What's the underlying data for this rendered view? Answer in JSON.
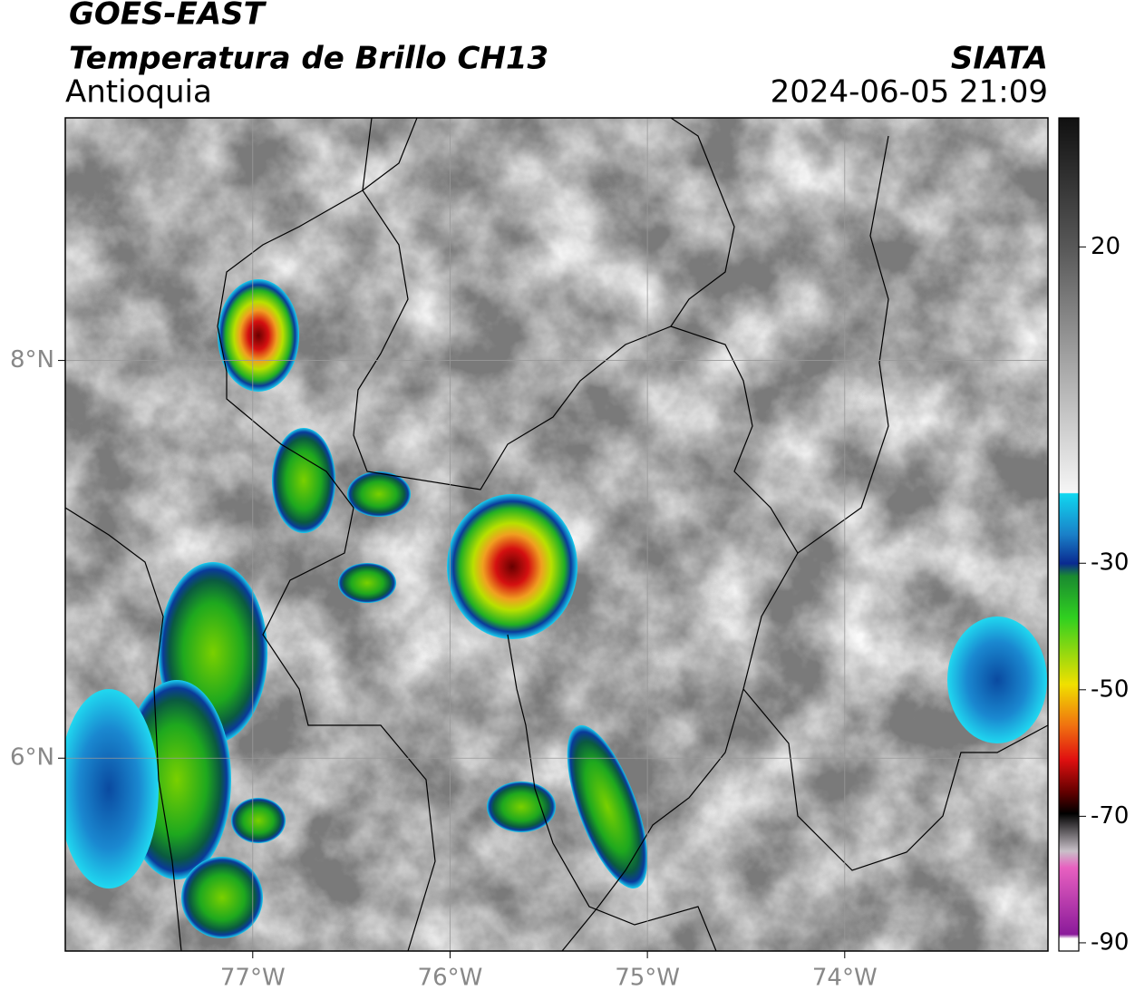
{
  "header": {
    "title": "GOES-EAST",
    "subtitle": "Temperatura de Brillo CH13",
    "region": "Antioquia",
    "source": "SIATA",
    "datetime": "2024-06-05 21:09"
  },
  "map": {
    "xlim": [
      -77.95,
      -72.97
    ],
    "ylim": [
      5.03,
      9.22
    ],
    "xticks": [
      {
        "value": -77,
        "label": "77°W"
      },
      {
        "value": -76,
        "label": "76°W"
      },
      {
        "value": -75,
        "label": "75°W"
      },
      {
        "value": -74,
        "label": "74°W"
      }
    ],
    "yticks": [
      {
        "value": 8,
        "label": "8°N"
      },
      {
        "value": 6,
        "label": "6°N"
      }
    ]
  },
  "colorbar": {
    "lim": [
      -91.3,
      40.4
    ],
    "ticks": [
      20,
      -30,
      -50,
      -70,
      -90
    ]
  }
}
